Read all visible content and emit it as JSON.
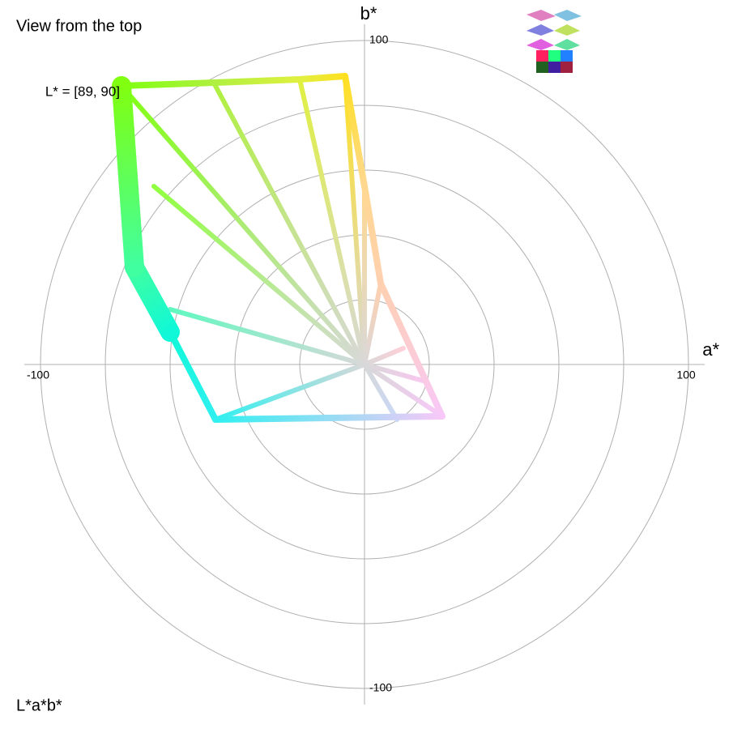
{
  "chart_data": {
    "type": "gamut-slice",
    "title": "View from the top",
    "slice_label": "L* = [89, 90]",
    "space_label": "L*a*b*",
    "xlabel": "a*",
    "ylabel": "b*",
    "xlim": [
      -100,
      100
    ],
    "ylim": [
      -100,
      100
    ],
    "xticks": [
      -100,
      100
    ],
    "yticks": [
      -100,
      100
    ],
    "rings": [
      20,
      40,
      60,
      80,
      100
    ],
    "center_color": "#d8d8d8",
    "boundary": {
      "a": [
        -75,
        -46,
        -20,
        -6,
        0,
        5,
        24,
        -46,
        -60,
        -71
      ],
      "b": [
        86,
        87,
        88,
        89,
        55,
        25,
        -16,
        -17,
        10,
        30
      ],
      "colors": [
        "#80ff10",
        "#b0f040",
        "#e0f040",
        "#ffe020",
        "#ffd890",
        "#ffd0b0",
        "#f8c8f8",
        "#30f0f0",
        "#10f8d8",
        "#40ffa0"
      ]
    },
    "spokes": {
      "a": [
        -75,
        -65,
        -46,
        -20,
        -6,
        0,
        5,
        12,
        18,
        24,
        10,
        -46,
        -60
      ],
      "b": [
        86,
        55,
        86,
        88,
        89,
        55,
        25,
        5,
        -5,
        -16,
        -17,
        -17,
        17
      ],
      "colors": [
        "#80ff10",
        "#90ff40",
        "#b0f040",
        "#e0f040",
        "#ffe020",
        "#ffd890",
        "#ffd0b0",
        "#ffd0d8",
        "#f8c8f0",
        "#f8c8f8",
        "#c8d8f8",
        "#30f0f0",
        "#60f8c0"
      ]
    }
  }
}
